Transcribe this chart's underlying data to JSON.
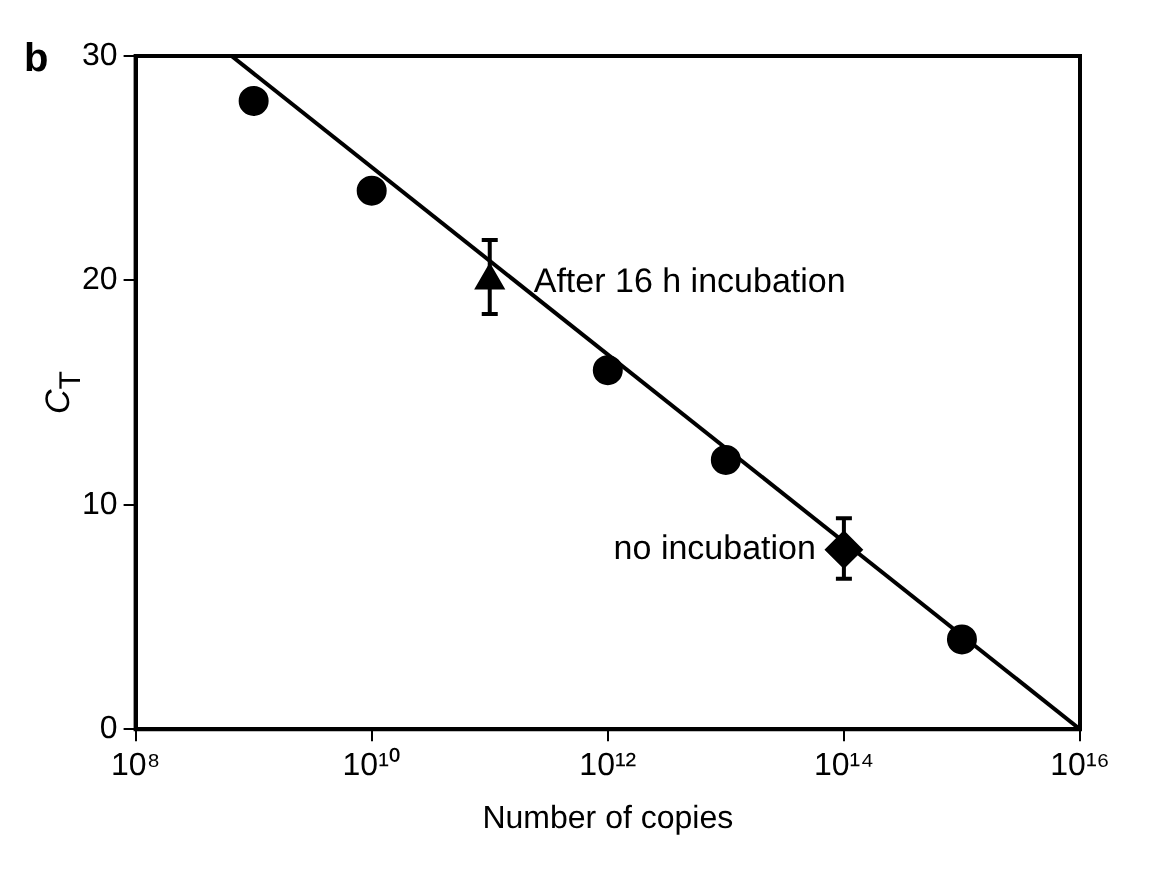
{
  "chart_data": {
    "type": "scatter",
    "xlabel": "Number of copies",
    "ylabel": "C$_{T}$",
    "log": "x",
    "grid": false,
    "xlim": [
      100000000,
      10000000000000000
    ],
    "xticks": [
      {
        "value": 100000000,
        "label": "10⁸"
      },
      {
        "value": 10000000000,
        "label": "10¹⁰"
      },
      {
        "value": 1000000000000,
        "label": "10¹²"
      },
      {
        "value": 100000000000000,
        "label": "10¹⁴"
      },
      {
        "value": 10000000000000000,
        "label": "10¹⁶"
      }
    ],
    "ylim": [
      0,
      30
    ],
    "yticks": [
      0,
      10,
      20,
      30
    ],
    "series": [
      {
        "marker": "circle",
        "color": "#000000",
        "x": [
          1000000000,
          10000000000,
          1000000000000,
          10000000000000,
          1000000000000000
        ],
        "values": [
          28,
          24,
          16,
          12,
          4
        ]
      },
      {
        "marker": "triangle",
        "color": "#000000",
        "x": [
          100000000000
        ],
        "values": [
          20
        ],
        "errors": [
          [
            18.5,
            21.8
          ]
        ]
      },
      {
        "marker": "diamond",
        "color": "#000000",
        "x": [
          100000000000000
        ],
        "values": [
          8
        ],
        "errors": [
          [
            6.7,
            9.4
          ]
        ]
      },
      {
        "type": "line",
        "marker": "none",
        "line_style": "solid",
        "color": "#000000",
        "x": [
          650000000,
          10000000000000000
        ],
        "values": [
          30,
          0
        ]
      }
    ],
    "annotations": [
      "b",
      {
        "text": "After 16 h incubation",
        "x": 100000000000,
        "y": 20
      },
      {
        "text": "no incubation",
        "x": 100000000000000,
        "y": 8
      }
    ]
  }
}
